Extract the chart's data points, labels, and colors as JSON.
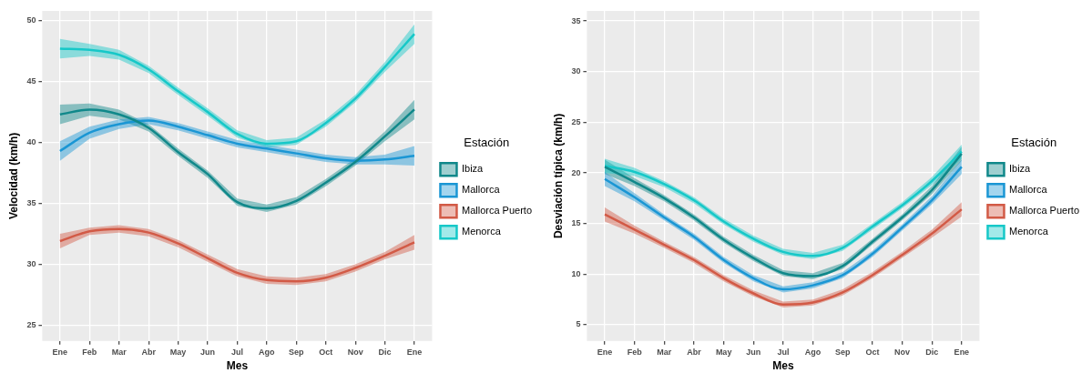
{
  "chart_data": [
    {
      "type": "line",
      "xlabel": "Mes",
      "ylabel": "Velocidad (km/h)",
      "legend_title": "Estación",
      "legend": "right",
      "grid": true,
      "marker": "none",
      "categories": [
        "Ene",
        "Feb",
        "Mar",
        "Abr",
        "May",
        "Jun",
        "Jul",
        "Ago",
        "Sep",
        "Oct",
        "Nov",
        "Dic",
        "Ene"
      ],
      "ylim": [
        23.7,
        50.8
      ],
      "yticks": [
        25,
        30,
        35,
        40,
        45,
        50
      ],
      "series": [
        {
          "name": "Ibiza",
          "color": "#10888a",
          "values": [
            42.3,
            42.7,
            42.3,
            41.2,
            39.2,
            37.4,
            35.1,
            34.6,
            35.2,
            36.7,
            38.4,
            40.5,
            42.7
          ],
          "lower": [
            41.5,
            42.2,
            41.9,
            40.9,
            38.9,
            37.1,
            34.8,
            34.3,
            34.9,
            36.4,
            38.1,
            40.1,
            41.9
          ],
          "upper": [
            43.1,
            43.2,
            42.7,
            41.5,
            39.5,
            37.7,
            35.4,
            34.9,
            35.5,
            37.0,
            38.7,
            40.9,
            43.5
          ]
        },
        {
          "name": "Mallorca",
          "color": "#1a96d4",
          "values": [
            39.3,
            40.8,
            41.5,
            41.8,
            41.3,
            40.6,
            39.9,
            39.5,
            39.1,
            38.7,
            38.5,
            38.6,
            38.9
          ],
          "lower": [
            38.5,
            40.3,
            41.1,
            41.5,
            41.0,
            40.3,
            39.6,
            39.2,
            38.8,
            38.4,
            38.2,
            38.2,
            38.1
          ],
          "upper": [
            40.1,
            41.3,
            41.9,
            42.1,
            41.6,
            40.9,
            40.2,
            39.8,
            39.4,
            39.0,
            38.8,
            39.0,
            39.7
          ]
        },
        {
          "name": "Mallorca Puerto",
          "color": "#d25a46",
          "values": [
            31.9,
            32.7,
            32.9,
            32.6,
            31.7,
            30.5,
            29.3,
            28.7,
            28.6,
            28.9,
            29.7,
            30.7,
            31.8
          ],
          "lower": [
            31.3,
            32.4,
            32.6,
            32.3,
            31.4,
            30.2,
            29.0,
            28.4,
            28.3,
            28.6,
            29.4,
            30.4,
            31.2
          ],
          "upper": [
            32.5,
            33.0,
            33.2,
            32.9,
            32.0,
            30.8,
            29.6,
            29.0,
            28.9,
            29.2,
            30.0,
            31.0,
            32.4
          ]
        },
        {
          "name": "Menorca",
          "color": "#16c8c8",
          "values": [
            47.7,
            47.6,
            47.2,
            46.0,
            44.2,
            42.5,
            40.7,
            39.9,
            40.1,
            41.6,
            43.6,
            46.2,
            48.9
          ],
          "lower": [
            46.9,
            47.1,
            46.8,
            45.7,
            43.9,
            42.2,
            40.4,
            39.6,
            39.8,
            41.3,
            43.3,
            45.8,
            48.1
          ],
          "upper": [
            48.5,
            48.1,
            47.6,
            46.3,
            44.5,
            42.8,
            41.0,
            40.2,
            40.4,
            41.9,
            43.9,
            46.6,
            49.7
          ]
        }
      ]
    },
    {
      "type": "line",
      "xlabel": "Mes",
      "ylabel": "Desviación típica (km/h)",
      "legend_title": "Estación",
      "legend": "right",
      "grid": true,
      "marker": "none",
      "categories": [
        "Ene",
        "Feb",
        "Mar",
        "Abr",
        "May",
        "Jun",
        "Jul",
        "Ago",
        "Sep",
        "Oct",
        "Nov",
        "Dic",
        "Ene"
      ],
      "ylim": [
        3.4,
        36
      ],
      "yticks": [
        5,
        10,
        15,
        20,
        25,
        30,
        35
      ],
      "series": [
        {
          "name": "Ibiza",
          "color": "#10888a",
          "values": [
            20.6,
            19.1,
            17.5,
            15.6,
            13.4,
            11.6,
            10.1,
            9.8,
            10.8,
            13.2,
            15.6,
            18.3,
            21.9
          ],
          "lower": [
            19.9,
            18.7,
            17.2,
            15.3,
            13.1,
            11.3,
            9.8,
            9.5,
            10.5,
            12.9,
            15.3,
            17.9,
            21.2
          ],
          "upper": [
            21.3,
            19.5,
            17.8,
            15.9,
            13.7,
            11.9,
            10.4,
            10.1,
            11.1,
            13.5,
            15.9,
            18.7,
            22.6
          ]
        },
        {
          "name": "Mallorca",
          "color": "#1a96d4",
          "values": [
            19.4,
            17.6,
            15.6,
            13.7,
            11.4,
            9.6,
            8.5,
            8.9,
            9.9,
            12.0,
            14.6,
            17.3,
            20.6
          ],
          "lower": [
            18.7,
            17.2,
            15.3,
            13.4,
            11.1,
            9.3,
            8.2,
            8.6,
            9.6,
            11.7,
            14.3,
            16.9,
            19.9
          ],
          "upper": [
            20.1,
            18.0,
            15.9,
            14.0,
            11.7,
            9.9,
            8.8,
            9.2,
            10.2,
            12.3,
            14.9,
            17.7,
            21.3
          ]
        },
        {
          "name": "Mallorca Puerto",
          "color": "#d25a46",
          "values": [
            15.9,
            14.4,
            12.9,
            11.4,
            9.6,
            8.1,
            7.0,
            7.2,
            8.2,
            9.9,
            11.9,
            14.0,
            16.4
          ],
          "lower": [
            15.2,
            14.0,
            12.6,
            11.1,
            9.3,
            7.8,
            6.7,
            6.9,
            7.9,
            9.6,
            11.6,
            13.6,
            15.7
          ],
          "upper": [
            16.6,
            14.8,
            13.2,
            11.7,
            9.9,
            8.4,
            7.3,
            7.5,
            8.5,
            10.2,
            12.2,
            14.4,
            17.1
          ]
        },
        {
          "name": "Menorca",
          "color": "#16c8c8",
          "values": [
            20.7,
            20.1,
            18.9,
            17.3,
            15.2,
            13.5,
            12.2,
            11.8,
            12.6,
            14.7,
            16.8,
            19.2,
            22.1
          ],
          "lower": [
            20.0,
            19.7,
            18.6,
            17.0,
            14.9,
            13.2,
            11.9,
            11.5,
            12.3,
            14.4,
            16.5,
            18.8,
            21.4
          ],
          "upper": [
            21.4,
            20.5,
            19.2,
            17.6,
            15.5,
            13.8,
            12.5,
            12.1,
            12.9,
            15.0,
            17.1,
            19.6,
            22.8
          ]
        }
      ]
    }
  ]
}
